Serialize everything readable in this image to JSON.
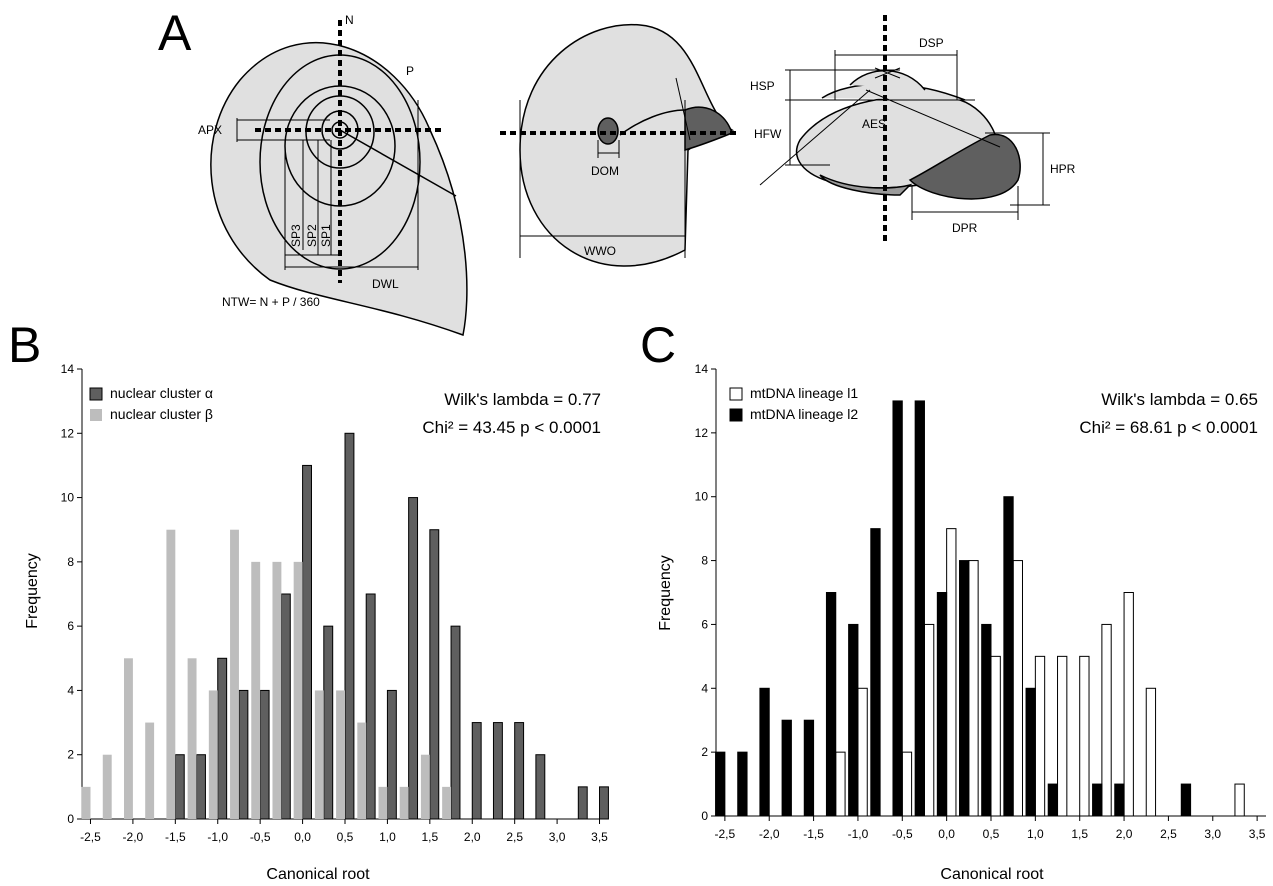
{
  "panel_a": {
    "letter": "A",
    "labels": {
      "n": "N",
      "p": "P",
      "apx": "APX",
      "sp1": "SP1",
      "sp2": "SP2",
      "sp3": "SP3",
      "dwl": "DWL",
      "ntw": "NTW= N + P / 360",
      "dom": "DOM",
      "wwo": "WWO",
      "dsp": "DSP",
      "hsp": "HSP",
      "hfw": "HFW",
      "aes": "AES",
      "hpr": "HPR",
      "dpr": "DPR"
    }
  },
  "chart_data": [
    {
      "panel": "B",
      "type": "bar",
      "xlabel": "Canonical root",
      "ylabel": "Frequency",
      "ylim": [
        0,
        14
      ],
      "yticks": [
        "0",
        "2",
        "4",
        "6",
        "8",
        "10",
        "12",
        "14"
      ],
      "xticks": [
        "-2,5",
        "-2,0",
        "-1,5",
        "-1,0",
        "-0,5",
        "0,0",
        "0,5",
        "1,0",
        "1,5",
        "2,0",
        "2,5",
        "3,0",
        "3,5"
      ],
      "xlim": [
        -2.6,
        3.6
      ],
      "bin_width": 0.25,
      "stats": [
        "Wilk's lambda = 0.77",
        "Chi² = 43.45 p < 0.0001"
      ],
      "series": [
        {
          "name": "nuclear cluster α",
          "color": "#5f5f5f",
          "outline": "#000000",
          "x": [
            -1.5,
            -1.25,
            -1.0,
            -0.75,
            -0.5,
            -0.25,
            0.0,
            0.25,
            0.5,
            0.75,
            1.0,
            1.25,
            1.5,
            1.75,
            2.0,
            2.25,
            2.5,
            2.75,
            3.25,
            3.5
          ],
          "values": [
            2,
            2,
            5,
            4,
            4,
            7,
            11,
            6,
            12,
            7,
            4,
            10,
            9,
            6,
            3,
            3,
            3,
            2,
            1,
            1
          ]
        },
        {
          "name": "nuclear cluster β",
          "color": "#bdbdbd",
          "outline": "none",
          "x": [
            -2.5,
            -2.25,
            -2.0,
            -1.75,
            -1.5,
            -1.25,
            -1.0,
            -0.75,
            -0.5,
            -0.25,
            0.0,
            0.25,
            0.5,
            0.75,
            1.0,
            1.25,
            1.5,
            1.75
          ],
          "values": [
            1,
            2,
            5,
            3,
            9,
            5,
            4,
            9,
            8,
            8,
            8,
            4,
            4,
            3,
            1,
            1,
            2,
            1
          ]
        }
      ]
    },
    {
      "panel": "C",
      "type": "bar",
      "xlabel": "Canonical root",
      "ylabel": "Frequency",
      "ylim": [
        0,
        14
      ],
      "yticks": [
        "0",
        "2",
        "4",
        "6",
        "8",
        "10",
        "12",
        "14"
      ],
      "xticks": [
        "-2,5",
        "-2,0",
        "-1,5",
        "-1,0",
        "-0,5",
        "0,0",
        "0,5",
        "1,0",
        "1,5",
        "2,0",
        "2,5",
        "3,0",
        "3,5"
      ],
      "xlim": [
        -2.6,
        3.6
      ],
      "bin_width": 0.25,
      "stats": [
        "Wilk's lambda = 0.65",
        "Chi² = 68.61 p < 0.0001"
      ],
      "series": [
        {
          "name": "mtDNA lineage l1",
          "color": "#ffffff",
          "outline": "#000000",
          "x": [
            -1.25,
            -1.0,
            -0.5,
            -0.25,
            0.0,
            0.25,
            0.5,
            0.75,
            1.0,
            1.25,
            1.5,
            1.75,
            2.0,
            2.25,
            3.25
          ],
          "values": [
            2,
            4,
            2,
            6,
            9,
            8,
            5,
            8,
            5,
            5,
            5,
            6,
            7,
            4,
            1
          ]
        },
        {
          "name": "mtDNA lineage l2",
          "color": "#000000",
          "outline": "#000000",
          "x": [
            -2.5,
            -2.25,
            -2.0,
            -1.75,
            -1.5,
            -1.25,
            -1.0,
            -0.75,
            -0.5,
            -0.25,
            0.0,
            0.25,
            0.5,
            0.75,
            1.0,
            1.25,
            1.75,
            2.0,
            2.75
          ],
          "values": [
            2,
            2,
            4,
            3,
            3,
            7,
            6,
            9,
            13,
            13,
            7,
            8,
            6,
            10,
            4,
            1,
            1,
            1,
            1
          ]
        }
      ]
    }
  ]
}
